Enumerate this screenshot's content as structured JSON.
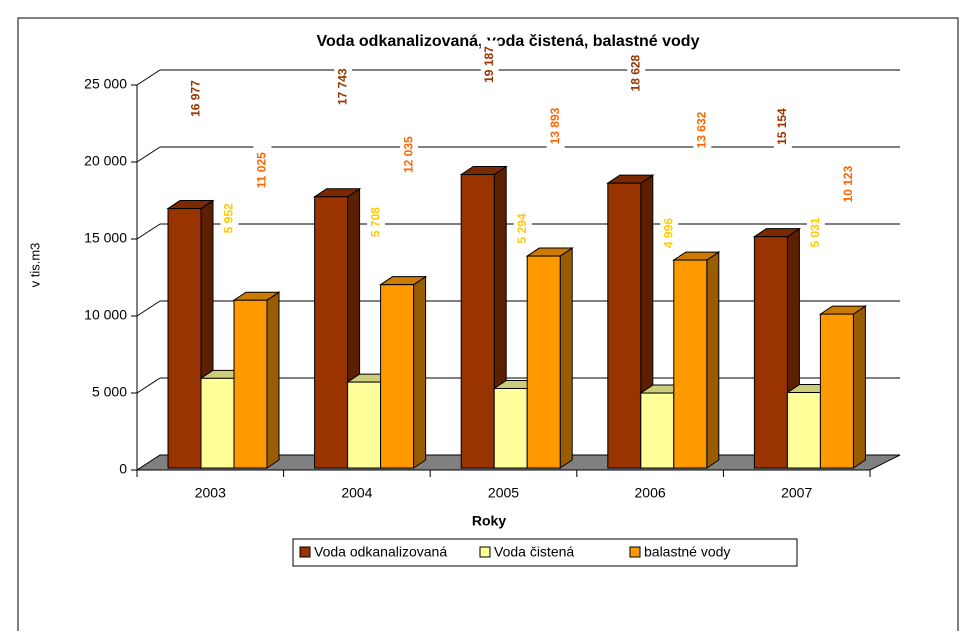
{
  "chart_data": {
    "type": "bar3d",
    "title": "Voda odkanalizovaná, voda čistená, balastné vody",
    "x_label": "Roky",
    "y_label": "v tis.m3",
    "categories": [
      "2003",
      "2004",
      "2005",
      "2006",
      "2007"
    ],
    "series": [
      {
        "name": "Voda odkanalizovaná",
        "color": "#993300",
        "values": [
          16977,
          17743,
          19187,
          18628,
          15154
        ],
        "value_labels": [
          "16 977",
          "17 743",
          "19 187",
          "18 628",
          "15 154"
        ],
        "label_color": "#993300"
      },
      {
        "name": "Voda čistená",
        "color": "#FFFF99",
        "values": [
          5952,
          5708,
          5294,
          4996,
          5031
        ],
        "value_labels": [
          "5 952",
          "5 708",
          "5 294",
          "4 996",
          "5 031"
        ],
        "label_color": "#FFCC00"
      },
      {
        "name": "balastné vody",
        "color": "#FF9900",
        "values": [
          11025,
          12035,
          13893,
          13632,
          10123
        ],
        "value_labels": [
          "11 025",
          "12 035",
          "13 893",
          "13 632",
          "10 123"
        ],
        "label_color": "#FF6600"
      }
    ],
    "ylim": [
      0,
      25000
    ],
    "yticks": [
      0,
      {
        "value": 5000,
        "label": "5 000"
      },
      {
        "value": 10000,
        "label": "10 000"
      },
      {
        "value": 15000,
        "label": "15 000"
      },
      {
        "value": 20000,
        "label": "20 000"
      },
      {
        "value": 25000,
        "label": "25 000"
      }
    ],
    "grid": true,
    "legend": "bottom"
  }
}
